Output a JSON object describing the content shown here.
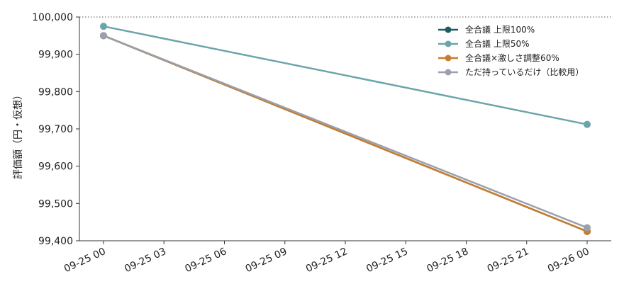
{
  "chart_data": {
    "type": "line",
    "title": "",
    "xlabel": "",
    "ylabel": "評価額（円・仮想）",
    "x": [
      "09-25 00",
      "09-26 00"
    ],
    "xticks": [
      "09-25 00",
      "09-25 03",
      "09-25 06",
      "09-25 09",
      "09-25 12",
      "09-25 15",
      "09-25 18",
      "09-25 21",
      "09-26 00"
    ],
    "yticks": [
      "99,400",
      "99,500",
      "99,600",
      "99,700",
      "99,800",
      "99,900",
      "100,000"
    ],
    "ylim": [
      99400,
      100000
    ],
    "reference_line": 100000,
    "grid": false,
    "legend_position": "top-right",
    "series": [
      {
        "name": "全合議 上限100%",
        "color": "#1f5c63",
        "values": [
          99950,
          99425
        ]
      },
      {
        "name": "全合議 上限50%",
        "color": "#6aa5ab",
        "values": [
          99975,
          99712
        ]
      },
      {
        "name": "全合議×激しさ調整60%",
        "color": "#c87d2e",
        "values": [
          99950,
          99425
        ]
      },
      {
        "name": "ただ持っているだけ（比較用）",
        "color": "#9aa0ac",
        "values": [
          99950,
          99435
        ]
      }
    ]
  }
}
